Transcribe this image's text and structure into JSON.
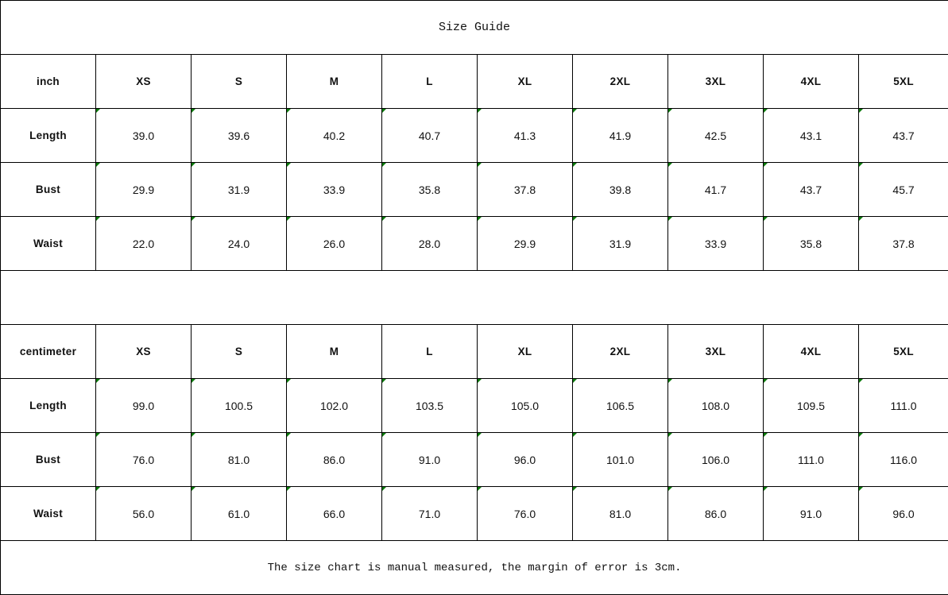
{
  "title": "Size Guide",
  "sizes": [
    "XS",
    "S",
    "M",
    "L",
    "XL",
    "2XL",
    "3XL",
    "4XL",
    "5XL"
  ],
  "tables": [
    {
      "unit": "inch",
      "rows": [
        {
          "label": "Length",
          "values": [
            "39.0",
            "39.6",
            "40.2",
            "40.7",
            "41.3",
            "41.9",
            "42.5",
            "43.1",
            "43.7"
          ]
        },
        {
          "label": "Bust",
          "values": [
            "29.9",
            "31.9",
            "33.9",
            "35.8",
            "37.8",
            "39.8",
            "41.7",
            "43.7",
            "45.7"
          ]
        },
        {
          "label": "Waist",
          "values": [
            "22.0",
            "24.0",
            "26.0",
            "28.0",
            "29.9",
            "31.9",
            "33.9",
            "35.8",
            "37.8"
          ]
        }
      ]
    },
    {
      "unit": "centimeter",
      "rows": [
        {
          "label": "Length",
          "values": [
            "99.0",
            "100.5",
            "102.0",
            "103.5",
            "105.0",
            "106.5",
            "108.0",
            "109.5",
            "111.0"
          ]
        },
        {
          "label": "Bust",
          "values": [
            "76.0",
            "81.0",
            "86.0",
            "91.0",
            "96.0",
            "101.0",
            "106.0",
            "111.0",
            "116.0"
          ]
        },
        {
          "label": "Waist",
          "values": [
            "56.0",
            "61.0",
            "66.0",
            "71.0",
            "76.0",
            "81.0",
            "86.0",
            "91.0",
            "96.0"
          ]
        }
      ]
    }
  ],
  "footer": "The size chart is manual measured, the margin of error is 3cm.",
  "colors": {
    "border": "#000000",
    "cell_marker": "#0a7a0a"
  }
}
